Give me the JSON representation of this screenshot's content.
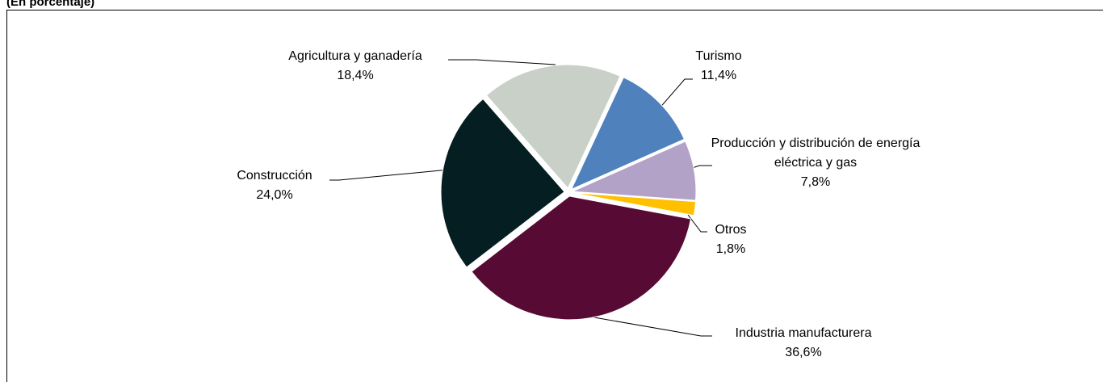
{
  "chart_data": {
    "type": "pie",
    "title": "(En porcentaje)",
    "categories": [
      "Turismo",
      "Producción y distribución de energía eléctrica y gas",
      "Otros",
      "Industria manufacturera",
      "Construcción",
      "Agricultura y ganadería"
    ],
    "values": [
      11.4,
      7.8,
      1.8,
      36.6,
      24.0,
      18.4
    ],
    "value_labels": [
      "11,4%",
      "7,8%",
      "1,8%",
      "36,6%",
      "24,0%",
      "18,4%"
    ],
    "colors": [
      "#4f81bd",
      "#b2a2c7",
      "#ffc000",
      "#570a33",
      "#051e21",
      "#c8d0c8"
    ]
  }
}
